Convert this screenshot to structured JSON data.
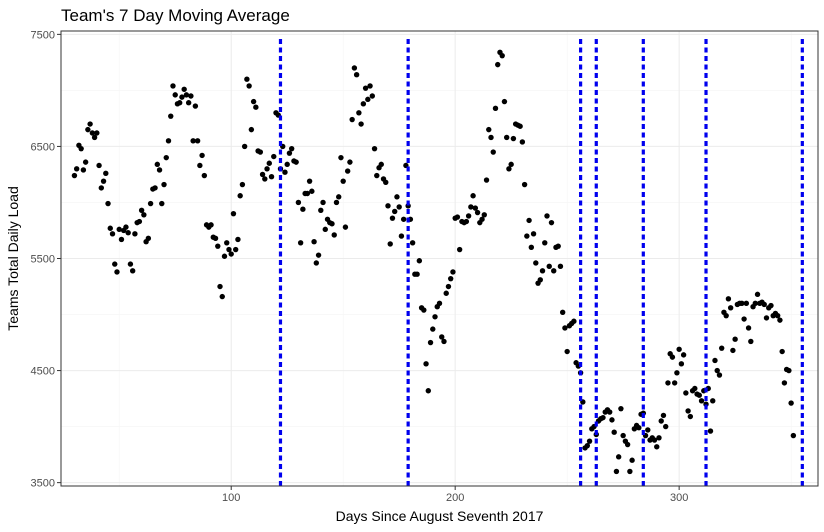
{
  "chart_data": {
    "type": "scatter",
    "title": "Team's 7 Day Moving Average",
    "xlabel": "Days Since August Seventh 2017",
    "ylabel": "Teams Total Daily Load",
    "xlim": [
      24,
      362
    ],
    "ylim": [
      3470,
      7530
    ],
    "x_ticks": [
      100,
      200,
      300
    ],
    "y_ticks": [
      3500,
      4500,
      5500,
      6500,
      7500
    ],
    "x_tick_labels": [
      "100",
      "200",
      "300"
    ],
    "y_tick_labels": [
      "3500",
      "4500",
      "5500",
      "6500",
      "7500"
    ],
    "grid": true,
    "point_color": "#000000",
    "vline_color": "#0000ee",
    "vlines": [
      122,
      179,
      256,
      263,
      284,
      312,
      355
    ],
    "points": [
      [
        30,
        6240
      ],
      [
        31,
        6300
      ],
      [
        32,
        6510
      ],
      [
        33,
        6480
      ],
      [
        34,
        6290
      ],
      [
        35,
        6360
      ],
      [
        36,
        6650
      ],
      [
        37,
        6700
      ],
      [
        38,
        6620
      ],
      [
        39,
        6580
      ],
      [
        40,
        6620
      ],
      [
        41,
        6330
      ],
      [
        42,
        6130
      ],
      [
        43,
        6190
      ],
      [
        44,
        6260
      ],
      [
        45,
        5990
      ],
      [
        46,
        5770
      ],
      [
        47,
        5720
      ],
      [
        48,
        5450
      ],
      [
        49,
        5380
      ],
      [
        50,
        5760
      ],
      [
        51,
        5670
      ],
      [
        52,
        5750
      ],
      [
        53,
        5780
      ],
      [
        54,
        5730
      ],
      [
        55,
        5450
      ],
      [
        56,
        5390
      ],
      [
        57,
        5720
      ],
      [
        58,
        5820
      ],
      [
        59,
        5830
      ],
      [
        60,
        5930
      ],
      [
        61,
        5890
      ],
      [
        62,
        5650
      ],
      [
        63,
        5680
      ],
      [
        64,
        5990
      ],
      [
        65,
        6120
      ],
      [
        66,
        6130
      ],
      [
        67,
        6340
      ],
      [
        68,
        6290
      ],
      [
        69,
        5990
      ],
      [
        70,
        6160
      ],
      [
        71,
        6400
      ],
      [
        72,
        6550
      ],
      [
        73,
        6770
      ],
      [
        74,
        7040
      ],
      [
        75,
        6960
      ],
      [
        76,
        6880
      ],
      [
        77,
        6890
      ],
      [
        78,
        6940
      ],
      [
        79,
        7010
      ],
      [
        80,
        6960
      ],
      [
        81,
        6890
      ],
      [
        82,
        6950
      ],
      [
        83,
        6550
      ],
      [
        84,
        6860
      ],
      [
        85,
        6550
      ],
      [
        86,
        6330
      ],
      [
        87,
        6420
      ],
      [
        88,
        6240
      ],
      [
        89,
        5800
      ],
      [
        90,
        5780
      ],
      [
        91,
        5800
      ],
      [
        92,
        5690
      ],
      [
        93,
        5680
      ],
      [
        94,
        5610
      ],
      [
        95,
        5250
      ],
      [
        96,
        5160
      ],
      [
        97,
        5520
      ],
      [
        98,
        5640
      ],
      [
        99,
        5580
      ],
      [
        100,
        5540
      ],
      [
        101,
        5900
      ],
      [
        102,
        5580
      ],
      [
        103,
        5670
      ],
      [
        104,
        6060
      ],
      [
        105,
        6160
      ],
      [
        106,
        6500
      ],
      [
        107,
        7100
      ],
      [
        108,
        7040
      ],
      [
        109,
        6650
      ],
      [
        110,
        6900
      ],
      [
        111,
        6850
      ],
      [
        112,
        6460
      ],
      [
        113,
        6450
      ],
      [
        114,
        6250
      ],
      [
        115,
        6210
      ],
      [
        116,
        6300
      ],
      [
        117,
        6350
      ],
      [
        118,
        6230
      ],
      [
        119,
        6410
      ],
      [
        120,
        6800
      ],
      [
        121,
        6780
      ],
      [
        122,
        6300
      ],
      [
        123,
        6500
      ],
      [
        124,
        6270
      ],
      [
        125,
        6340
      ],
      [
        126,
        6440
      ],
      [
        127,
        6480
      ],
      [
        128,
        6370
      ],
      [
        129,
        6360
      ],
      [
        130,
        6000
      ],
      [
        131,
        5640
      ],
      [
        132,
        5940
      ],
      [
        133,
        6080
      ],
      [
        134,
        6080
      ],
      [
        135,
        6190
      ],
      [
        136,
        6100
      ],
      [
        137,
        5650
      ],
      [
        138,
        5460
      ],
      [
        139,
        5530
      ],
      [
        140,
        5930
      ],
      [
        141,
        6000
      ],
      [
        142,
        5760
      ],
      [
        143,
        5850
      ],
      [
        144,
        5820
      ],
      [
        145,
        5810
      ],
      [
        146,
        5710
      ],
      [
        147,
        6000
      ],
      [
        148,
        6050
      ],
      [
        149,
        6400
      ],
      [
        150,
        6190
      ],
      [
        151,
        5780
      ],
      [
        152,
        6280
      ],
      [
        153,
        6360
      ],
      [
        154,
        6740
      ],
      [
        155,
        7200
      ],
      [
        156,
        7140
      ],
      [
        157,
        6800
      ],
      [
        158,
        6700
      ],
      [
        159,
        6880
      ],
      [
        160,
        7020
      ],
      [
        161,
        6920
      ],
      [
        162,
        7040
      ],
      [
        163,
        6950
      ],
      [
        164,
        6480
      ],
      [
        165,
        6240
      ],
      [
        166,
        6310
      ],
      [
        167,
        6340
      ],
      [
        168,
        6210
      ],
      [
        169,
        6180
      ],
      [
        170,
        5970
      ],
      [
        171,
        5630
      ],
      [
        172,
        5860
      ],
      [
        173,
        5920
      ],
      [
        174,
        6050
      ],
      [
        175,
        5960
      ],
      [
        176,
        5700
      ],
      [
        177,
        5850
      ],
      [
        178,
        6330
      ],
      [
        179,
        5970
      ],
      [
        180,
        5850
      ],
      [
        181,
        5640
      ],
      [
        182,
        5360
      ],
      [
        183,
        5360
      ],
      [
        184,
        5480
      ],
      [
        185,
        5060
      ],
      [
        186,
        5040
      ],
      [
        187,
        4560
      ],
      [
        188,
        4320
      ],
      [
        189,
        4750
      ],
      [
        190,
        4870
      ],
      [
        191,
        4980
      ],
      [
        192,
        5070
      ],
      [
        193,
        5100
      ],
      [
        194,
        4800
      ],
      [
        195,
        4760
      ],
      [
        196,
        5190
      ],
      [
        197,
        5250
      ],
      [
        198,
        5320
      ],
      [
        199,
        5380
      ],
      [
        200,
        5860
      ],
      [
        201,
        5870
      ],
      [
        202,
        5580
      ],
      [
        203,
        5830
      ],
      [
        204,
        5820
      ],
      [
        205,
        5830
      ],
      [
        206,
        5880
      ],
      [
        207,
        5960
      ],
      [
        208,
        6060
      ],
      [
        209,
        5950
      ],
      [
        210,
        5910
      ],
      [
        211,
        5820
      ],
      [
        212,
        5850
      ],
      [
        213,
        5890
      ],
      [
        214,
        6200
      ],
      [
        215,
        6650
      ],
      [
        216,
        6580
      ],
      [
        217,
        6450
      ],
      [
        218,
        6840
      ],
      [
        219,
        7230
      ],
      [
        220,
        7340
      ],
      [
        221,
        7310
      ],
      [
        222,
        6900
      ],
      [
        223,
        6580
      ],
      [
        224,
        6300
      ],
      [
        225,
        6340
      ],
      [
        226,
        6570
      ],
      [
        227,
        6700
      ],
      [
        228,
        6690
      ],
      [
        229,
        6680
      ],
      [
        230,
        6540
      ],
      [
        231,
        6160
      ],
      [
        232,
        5700
      ],
      [
        233,
        5840
      ],
      [
        234,
        5600
      ],
      [
        235,
        5720
      ],
      [
        236,
        5460
      ],
      [
        237,
        5280
      ],
      [
        238,
        5310
      ],
      [
        239,
        5390
      ],
      [
        240,
        5640
      ],
      [
        241,
        5880
      ],
      [
        242,
        5430
      ],
      [
        243,
        5820
      ],
      [
        244,
        5390
      ],
      [
        245,
        5600
      ],
      [
        246,
        5610
      ],
      [
        247,
        5430
      ],
      [
        248,
        5020
      ],
      [
        249,
        4880
      ],
      [
        250,
        4670
      ],
      [
        251,
        4900
      ],
      [
        252,
        4920
      ],
      [
        253,
        4940
      ],
      [
        254,
        4570
      ],
      [
        255,
        4540
      ],
      [
        256,
        4480
      ],
      [
        257,
        4220
      ],
      [
        258,
        3810
      ],
      [
        259,
        3830
      ],
      [
        260,
        3870
      ],
      [
        261,
        3980
      ],
      [
        262,
        4000
      ],
      [
        263,
        3930
      ],
      [
        264,
        4050
      ],
      [
        265,
        4070
      ],
      [
        266,
        4080
      ],
      [
        267,
        4130
      ],
      [
        268,
        4150
      ],
      [
        269,
        4130
      ],
      [
        270,
        4060
      ],
      [
        271,
        3950
      ],
      [
        272,
        3600
      ],
      [
        273,
        3730
      ],
      [
        274,
        4160
      ],
      [
        275,
        3920
      ],
      [
        276,
        3870
      ],
      [
        277,
        3840
      ],
      [
        278,
        3600
      ],
      [
        279,
        3700
      ],
      [
        280,
        3980
      ],
      [
        281,
        4010
      ],
      [
        282,
        3990
      ],
      [
        283,
        4110
      ],
      [
        284,
        4120
      ],
      [
        285,
        3920
      ],
      [
        286,
        3970
      ],
      [
        287,
        3880
      ],
      [
        288,
        3900
      ],
      [
        289,
        3880
      ],
      [
        290,
        3820
      ],
      [
        291,
        3900
      ],
      [
        292,
        4050
      ],
      [
        293,
        4100
      ],
      [
        294,
        4000
      ],
      [
        295,
        4390
      ],
      [
        296,
        4650
      ],
      [
        297,
        4620
      ],
      [
        298,
        4390
      ],
      [
        299,
        4480
      ],
      [
        300,
        4690
      ],
      [
        301,
        4560
      ],
      [
        302,
        4640
      ],
      [
        303,
        4300
      ],
      [
        304,
        4140
      ],
      [
        305,
        4090
      ],
      [
        306,
        4320
      ],
      [
        307,
        4340
      ],
      [
        308,
        4290
      ],
      [
        309,
        4280
      ],
      [
        310,
        4230
      ],
      [
        311,
        4320
      ],
      [
        312,
        4200
      ],
      [
        313,
        4340
      ],
      [
        314,
        3960
      ],
      [
        315,
        4230
      ],
      [
        316,
        4590
      ],
      [
        317,
        4500
      ],
      [
        318,
        4460
      ],
      [
        319,
        4700
      ],
      [
        320,
        5020
      ],
      [
        321,
        4990
      ],
      [
        322,
        5140
      ],
      [
        323,
        5060
      ],
      [
        324,
        4680
      ],
      [
        325,
        4780
      ],
      [
        326,
        5090
      ],
      [
        327,
        5100
      ],
      [
        328,
        5100
      ],
      [
        329,
        4960
      ],
      [
        330,
        5100
      ],
      [
        331,
        4880
      ],
      [
        332,
        4760
      ],
      [
        333,
        5070
      ],
      [
        334,
        5100
      ],
      [
        335,
        5180
      ],
      [
        336,
        5100
      ],
      [
        337,
        5110
      ],
      [
        338,
        5090
      ],
      [
        339,
        4970
      ],
      [
        340,
        5060
      ],
      [
        341,
        5080
      ],
      [
        342,
        4990
      ],
      [
        343,
        5010
      ],
      [
        344,
        4990
      ],
      [
        345,
        4950
      ],
      [
        346,
        4670
      ],
      [
        347,
        4390
      ],
      [
        348,
        4510
      ],
      [
        349,
        4500
      ],
      [
        350,
        4210
      ],
      [
        351,
        3920
      ]
    ]
  }
}
